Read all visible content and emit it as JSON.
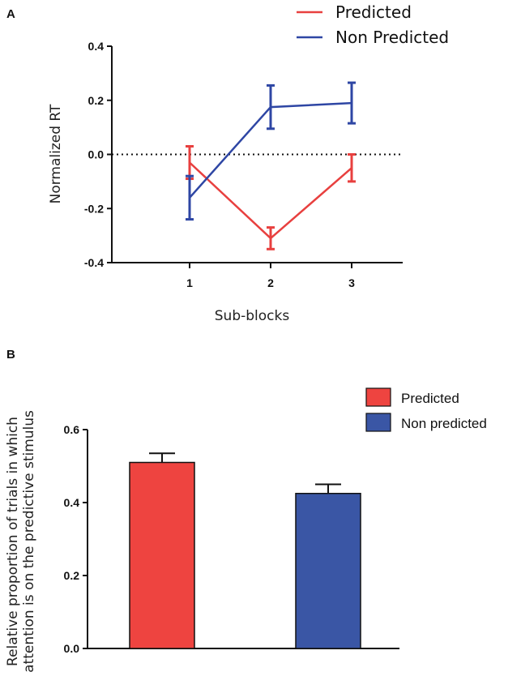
{
  "chart_data": [
    {
      "panel": "A",
      "type": "line",
      "categories": [
        "1",
        "2",
        "3"
      ],
      "xlabel": "Sub-blocks",
      "ylabel": "Normalized RT",
      "ylim": [
        -0.4,
        0.4
      ],
      "yticks": [
        "0.4",
        "0.2",
        "0.0",
        "-0.2",
        "-0.4"
      ],
      "ytick_values": [
        0.4,
        0.2,
        0.0,
        -0.2,
        -0.4
      ],
      "reference_line": 0.0,
      "legend_position": "top-right",
      "series": [
        {
          "name": "Predicted",
          "color": "#e8403f",
          "values": [
            -0.03,
            -0.31,
            -0.05
          ],
          "errors": [
            0.06,
            0.04,
            0.05
          ]
        },
        {
          "name": "Non Predicted",
          "color": "#2e46a4",
          "values": [
            -0.16,
            0.175,
            0.19
          ],
          "errors": [
            0.08,
            0.08,
            0.075
          ]
        }
      ]
    },
    {
      "panel": "B",
      "type": "bar",
      "categories": [
        "Predicted",
        "Non predicted"
      ],
      "values": [
        0.51,
        0.425
      ],
      "errors": [
        0.025,
        0.025
      ],
      "colors": [
        "#ee4440",
        "#3a56a5"
      ],
      "ylabel_line1": "Relative proportion of trials in which",
      "ylabel_line2": "attention is on the predictive stimulus",
      "ylim": [
        0,
        0.6
      ],
      "yticks": [
        "0.6",
        "0.4",
        "0.2",
        "0.0"
      ],
      "ytick_values": [
        0.6,
        0.4,
        0.2,
        0.0
      ],
      "legend_position": "top-right"
    }
  ]
}
